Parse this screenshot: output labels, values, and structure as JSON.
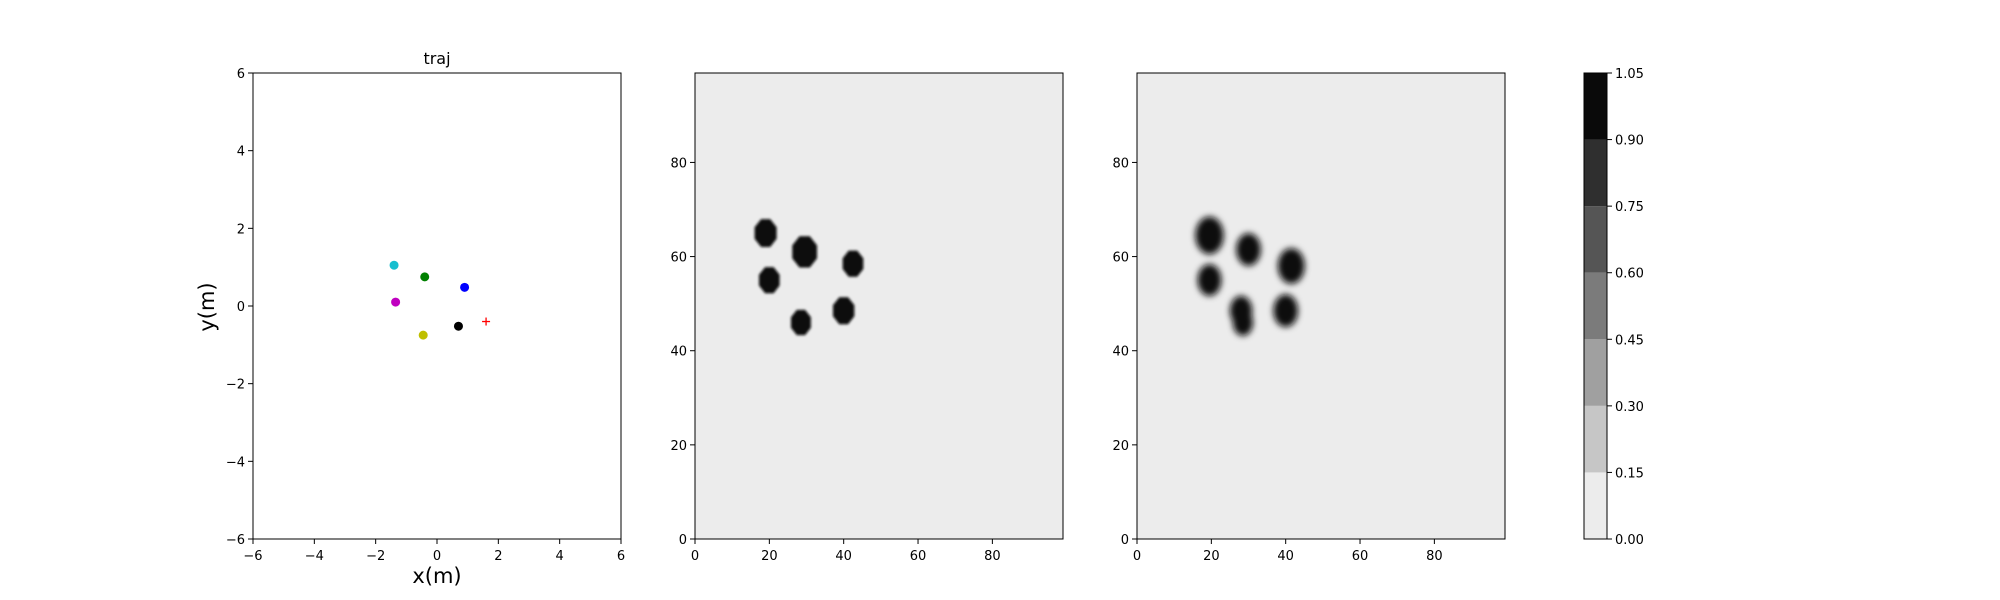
{
  "chart_data": [
    {
      "type": "scatter",
      "title": "traj",
      "xlabel": "x(m)",
      "ylabel": "y(m)",
      "xlim": [
        -6,
        6
      ],
      "ylim": [
        -6,
        6
      ],
      "xticks": [
        -6,
        -4,
        -2,
        0,
        2,
        4,
        6
      ],
      "yticks": [
        -6,
        -4,
        -2,
        0,
        2,
        4,
        6
      ],
      "points": [
        {
          "x": -1.4,
          "y": 1.05,
          "color": "#17becf",
          "marker": "circle"
        },
        {
          "x": -0.4,
          "y": 0.75,
          "color": "#008000",
          "marker": "circle"
        },
        {
          "x": 0.9,
          "y": 0.48,
          "color": "#0000ff",
          "marker": "circle"
        },
        {
          "x": -1.35,
          "y": 0.1,
          "color": "#c000c0",
          "marker": "circle"
        },
        {
          "x": 0.7,
          "y": -0.52,
          "color": "#000000",
          "marker": "circle"
        },
        {
          "x": -0.45,
          "y": -0.75,
          "color": "#bfbf00",
          "marker": "circle"
        },
        {
          "x": 1.6,
          "y": -0.4,
          "color": "#ff0000",
          "marker": "plus"
        }
      ]
    },
    {
      "type": "heatmap",
      "title": "",
      "xlim": [
        0,
        99
      ],
      "ylim": [
        0,
        99
      ],
      "xticks": [
        0,
        20,
        40,
        60,
        80
      ],
      "yticks": [
        0,
        20,
        40,
        60,
        80
      ],
      "background_value": 0.07,
      "blobs": [
        {
          "cx": 19,
          "cy": 65,
          "r": 3.2,
          "blur": 0.6,
          "value": 1.0,
          "shape": "octagon"
        },
        {
          "cx": 29.5,
          "cy": 61,
          "r": 3.6,
          "blur": 0.6,
          "value": 1.0,
          "shape": "octagon"
        },
        {
          "cx": 42.5,
          "cy": 58.5,
          "r": 3.0,
          "blur": 0.6,
          "value": 1.0,
          "shape": "octagon"
        },
        {
          "cx": 20,
          "cy": 55,
          "r": 3.0,
          "blur": 0.6,
          "value": 1.0,
          "shape": "octagon"
        },
        {
          "cx": 40,
          "cy": 48.5,
          "r": 3.1,
          "blur": 0.6,
          "value": 1.0,
          "shape": "octagon"
        },
        {
          "cx": 28.5,
          "cy": 46,
          "r": 2.9,
          "blur": 0.6,
          "value": 1.0,
          "shape": "octagon"
        }
      ]
    },
    {
      "type": "heatmap",
      "title": "",
      "xlim": [
        0,
        99
      ],
      "ylim": [
        0,
        99
      ],
      "xticks": [
        0,
        20,
        40,
        60,
        80
      ],
      "yticks": [
        0,
        20,
        40,
        60,
        80
      ],
      "background_value": 0.07,
      "blobs": [
        {
          "cx": 19.5,
          "cy": 64.5,
          "r": 3.8,
          "blur": 1.4,
          "value": 1.0,
          "shape": "ellipse"
        },
        {
          "cx": 30,
          "cy": 61.5,
          "r": 3.3,
          "blur": 1.4,
          "value": 1.0,
          "shape": "ellipse"
        },
        {
          "cx": 41.5,
          "cy": 58,
          "r": 3.6,
          "blur": 1.4,
          "value": 1.0,
          "shape": "ellipse"
        },
        {
          "cx": 19.5,
          "cy": 55,
          "r": 3.2,
          "blur": 1.4,
          "value": 1.0,
          "shape": "ellipse"
        },
        {
          "cx": 40,
          "cy": 48.5,
          "r": 3.3,
          "blur": 1.4,
          "value": 1.0,
          "shape": "ellipse"
        },
        {
          "cx": 28,
          "cy": 48.5,
          "r": 3.0,
          "blur": 1.6,
          "value": 1.0,
          "shape": "ellipse"
        },
        {
          "cx": 28.5,
          "cy": 46,
          "r": 2.7,
          "blur": 1.6,
          "value": 1.0,
          "shape": "ellipse"
        }
      ]
    },
    {
      "type": "colorbar",
      "levels": [
        0.0,
        0.15,
        0.3,
        0.45,
        0.6,
        0.75,
        0.9,
        1.05
      ],
      "tick_labels": [
        "0.00",
        "0.15",
        "0.30",
        "0.45",
        "0.60",
        "0.75",
        "0.90",
        "1.05"
      ],
      "colors": [
        "#ececec",
        "#c6c6c6",
        "#a0a0a0",
        "#7b7b7b",
        "#555555",
        "#2f2f2f",
        "#0a0a0a"
      ]
    }
  ]
}
